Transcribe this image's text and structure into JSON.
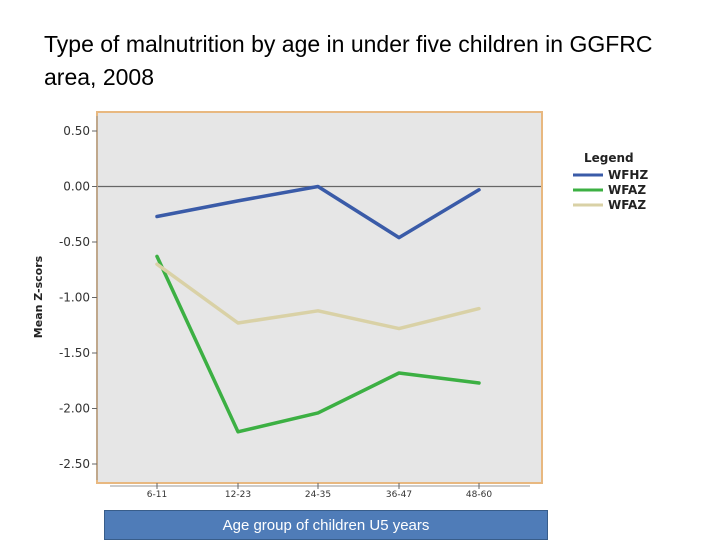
{
  "slide": {
    "title": "Type of malnutrition by age in under five children in GGFRC area, 2008"
  },
  "colors": {
    "plot_background": "#e6e6e6",
    "plot_border": "#e8b880",
    "zero_line": "#666666"
  },
  "chart_data": {
    "type": "line",
    "title": "",
    "ylabel": "Mean Z-scors",
    "xlabel": "Age group of children U5 years",
    "categories": [
      "6-11",
      "12-23",
      "24-35",
      "36-47",
      "48-60"
    ],
    "ylim": [
      -2.7,
      0.6
    ],
    "yticks": [
      0.5,
      0.0,
      -0.5,
      -1.0,
      -1.5,
      -2.0,
      -2.5
    ],
    "ytick_labels": [
      "0.50",
      "0.00",
      "-0.50",
      "-1.00",
      "-1.50",
      "-2.00",
      "-2.50"
    ],
    "reference_line": 0.0,
    "grid": false,
    "legend": {
      "title": "Legend",
      "placement": "right",
      "entries": [
        "WFHZ",
        "WFAZ",
        "WFAZ"
      ]
    },
    "series": [
      {
        "name": "WFHZ",
        "color": "#3a5ba8",
        "values": [
          -0.27,
          -0.13,
          0.0,
          -0.46,
          -0.03
        ]
      },
      {
        "name": "WFAZ",
        "color": "#3cb043",
        "values": [
          -0.63,
          -2.21,
          -2.04,
          -1.68,
          -1.77
        ]
      },
      {
        "name": "WFAZ",
        "color": "#d9d1a6",
        "values": [
          -0.7,
          -1.23,
          -1.12,
          -1.28,
          -1.1
        ]
      }
    ]
  }
}
